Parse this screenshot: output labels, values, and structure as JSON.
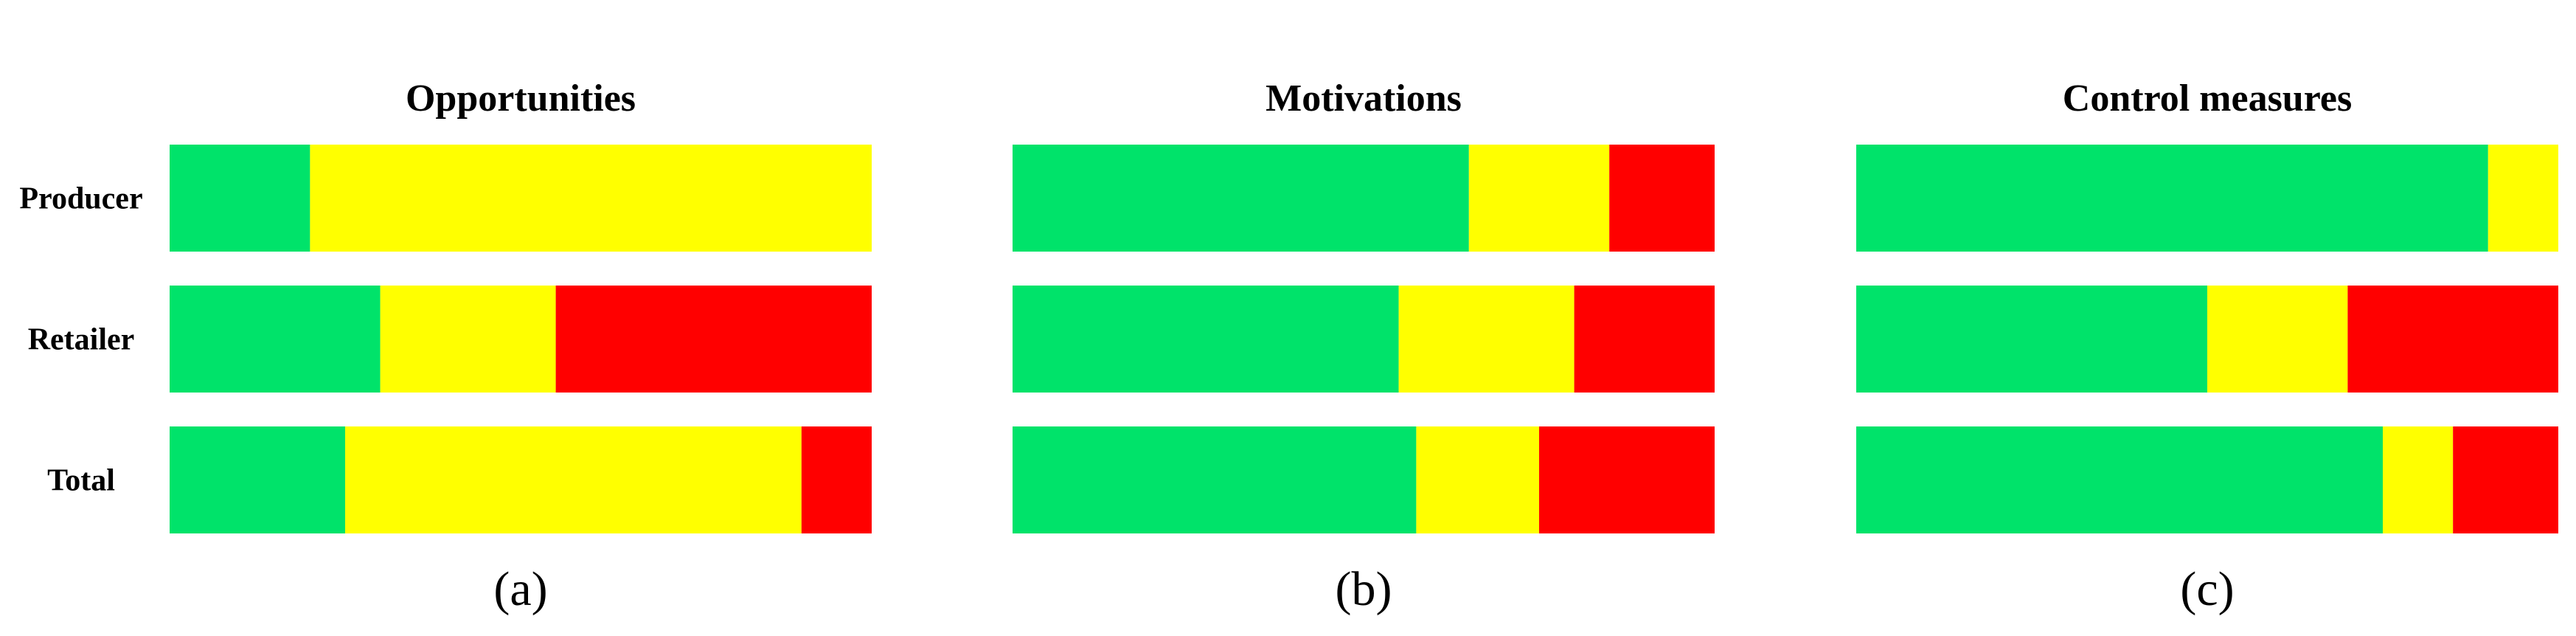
{
  "chart_data": [
    {
      "type": "bar",
      "stacked": true,
      "orientation": "horizontal",
      "title": "Opportunities",
      "caption": "(a)",
      "categories": [
        "Producer",
        "Retailer",
        "Total"
      ],
      "xlim": [
        0,
        100
      ],
      "grid": false,
      "series": [
        {
          "color": "#00e36a",
          "values": [
            20,
            30,
            25
          ]
        },
        {
          "color": "#ffff00",
          "values": [
            80,
            25,
            65
          ]
        },
        {
          "color": "#ff0000",
          "values": [
            0,
            45,
            10
          ]
        }
      ]
    },
    {
      "type": "bar",
      "stacked": true,
      "orientation": "horizontal",
      "title": "Motivations",
      "caption": "(b)",
      "categories": [
        "Producer",
        "Retailer",
        "Total"
      ],
      "xlim": [
        0,
        100
      ],
      "grid": false,
      "series": [
        {
          "color": "#00e36a",
          "values": [
            65,
            55,
            57.5
          ]
        },
        {
          "color": "#ffff00",
          "values": [
            20,
            25,
            17.5
          ]
        },
        {
          "color": "#ff0000",
          "values": [
            15,
            20,
            25
          ]
        }
      ]
    },
    {
      "type": "bar",
      "stacked": true,
      "orientation": "horizontal",
      "title": "Control measures",
      "caption": "(c)",
      "categories": [
        "Producer",
        "Retailer",
        "Total"
      ],
      "xlim": [
        0,
        100
      ],
      "grid": false,
      "series": [
        {
          "color": "#00e36a",
          "values": [
            90,
            50,
            75
          ]
        },
        {
          "color": "#ffff00",
          "values": [
            10,
            20,
            10
          ]
        },
        {
          "color": "#ff0000",
          "values": [
            0,
            30,
            15
          ]
        }
      ]
    }
  ]
}
